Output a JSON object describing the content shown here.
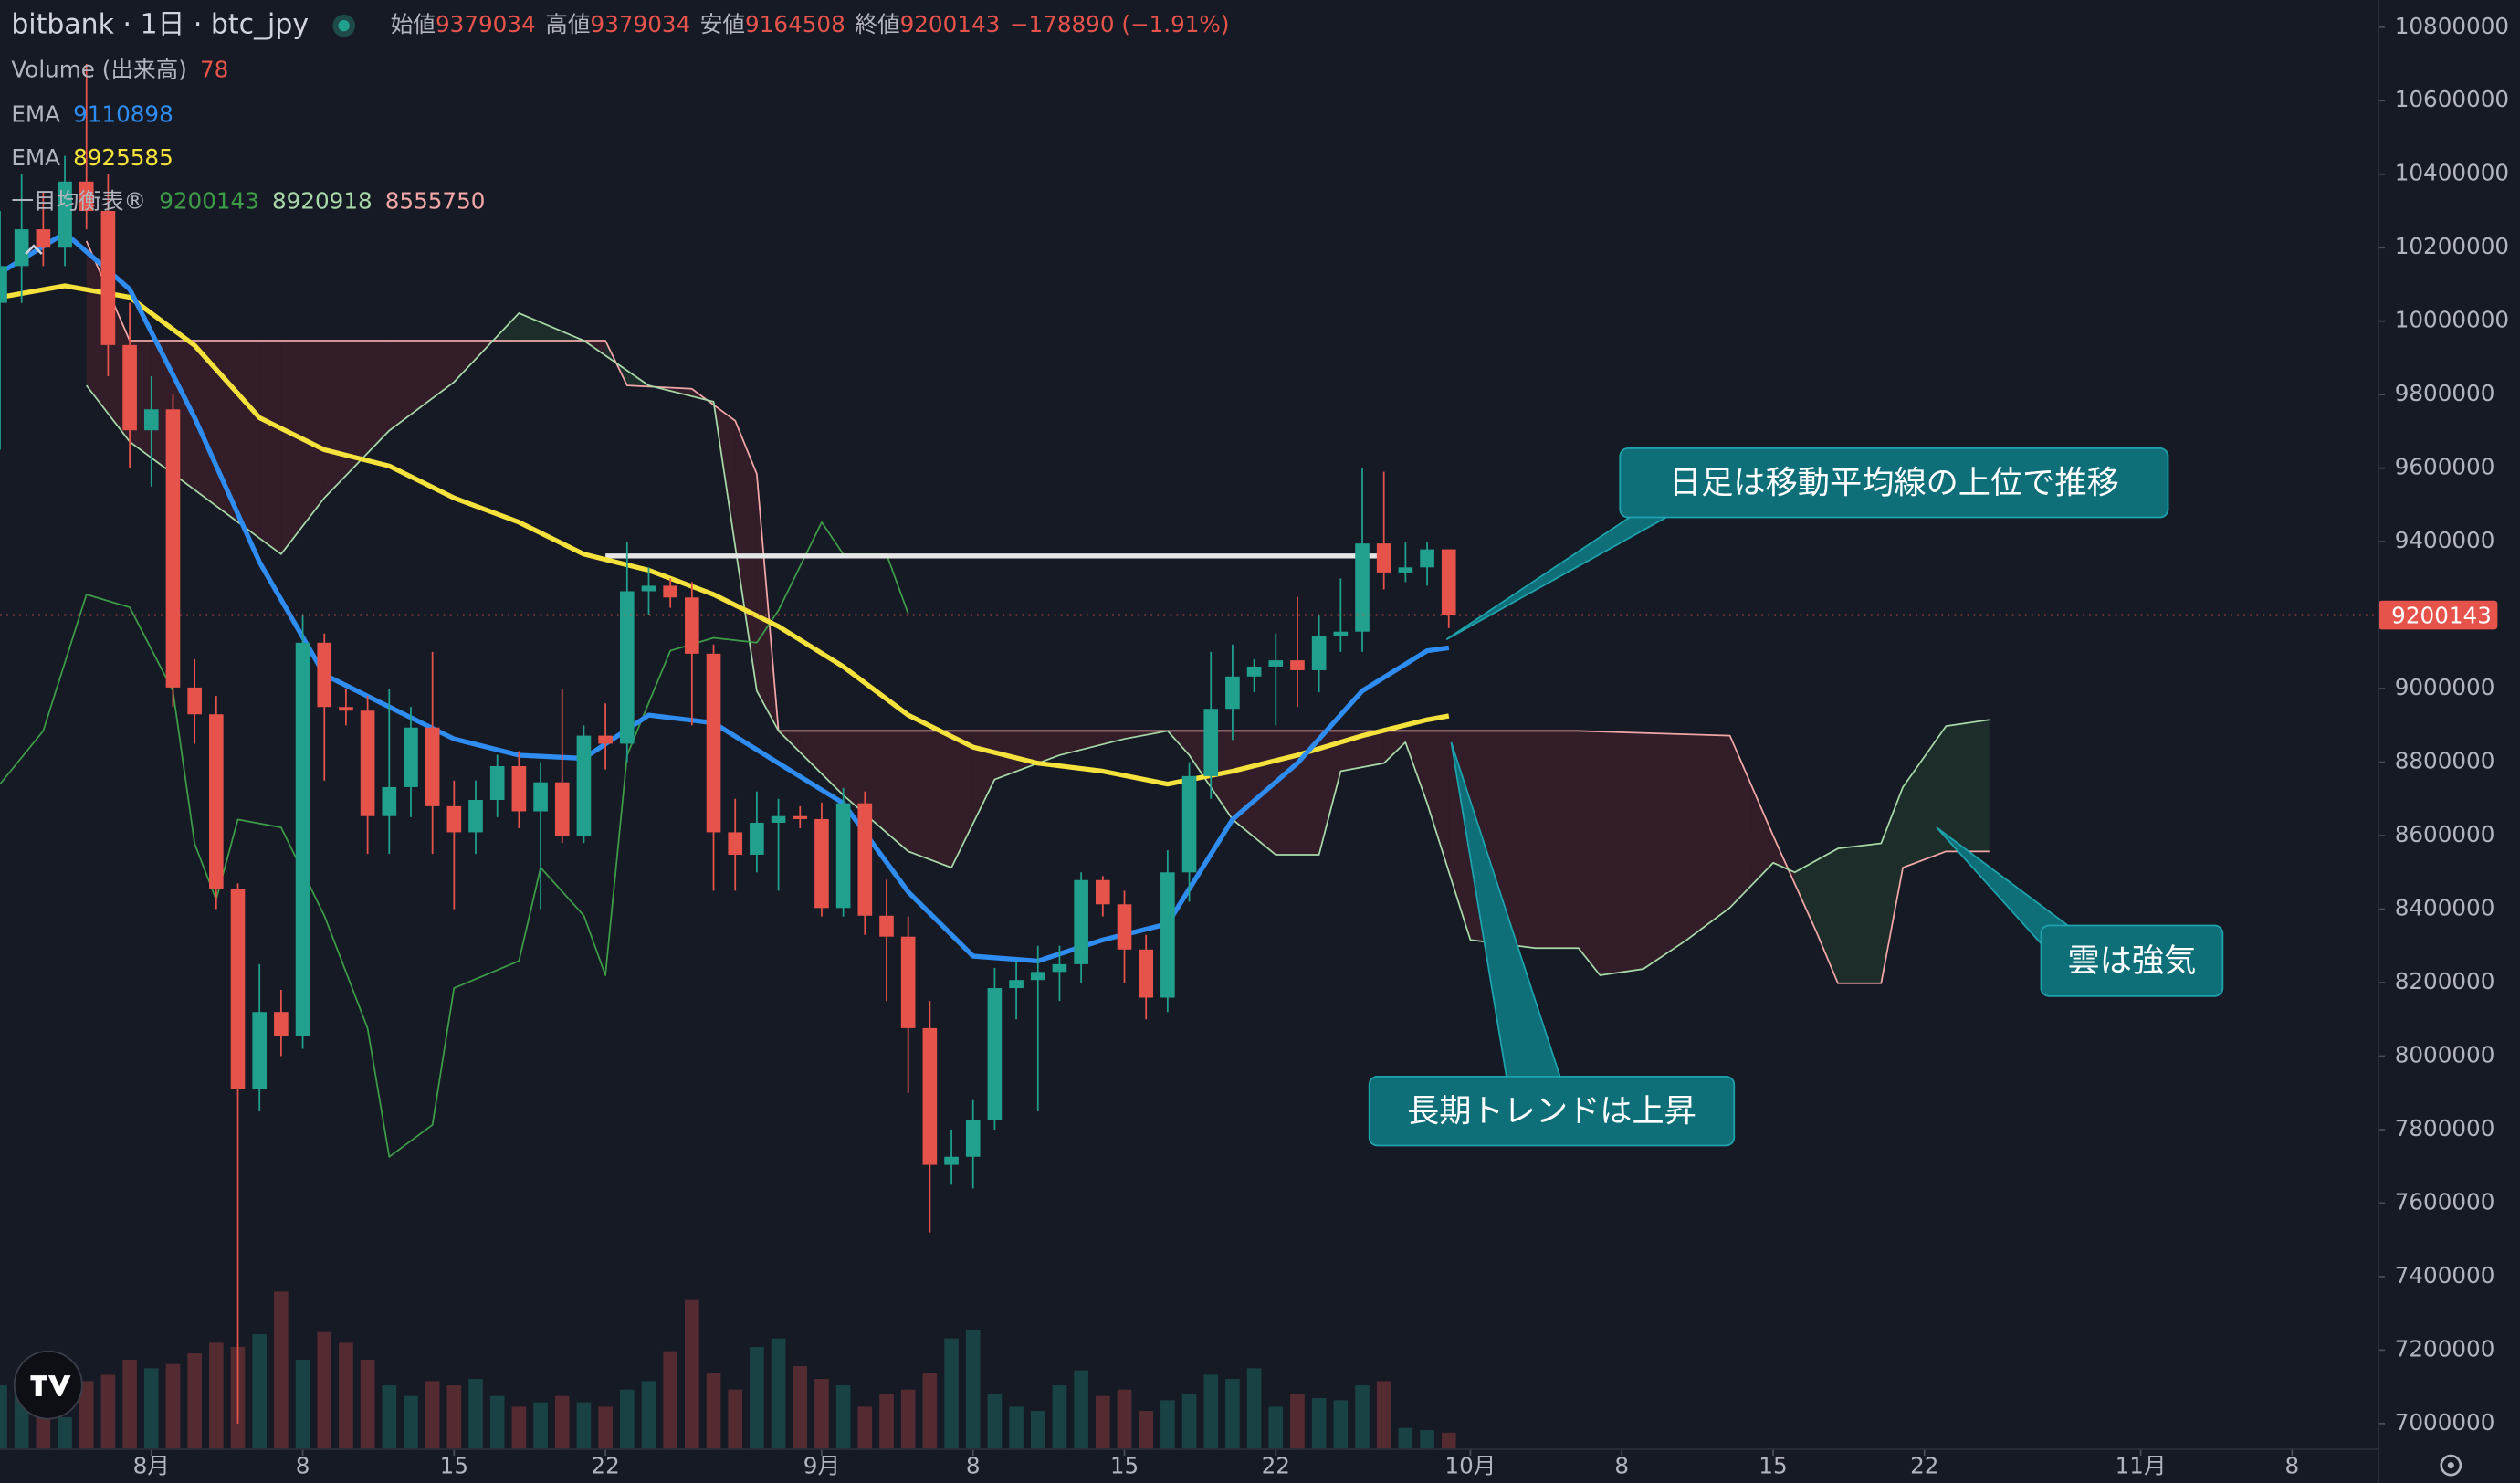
{
  "chart_data": {
    "type": "candlestick",
    "title": "bitbank · 1日 · btc_jpy",
    "ohlc_labels": [
      "始値",
      "高値",
      "安値",
      "終値"
    ],
    "change_label": "−178890 (−1.91%)",
    "up_color": "#22a08e",
    "down_color": "#e5534b",
    "xlim": [
      "07-25",
      "11-12"
    ],
    "xticks": [
      {
        "value": "08-01",
        "label": "8月"
      },
      {
        "value": "08-08",
        "label": "8"
      },
      {
        "value": "08-15",
        "label": "15"
      },
      {
        "value": "08-22",
        "label": "22"
      },
      {
        "value": "09-01",
        "label": "9月"
      },
      {
        "value": "09-08",
        "label": "8"
      },
      {
        "value": "09-15",
        "label": "15"
      },
      {
        "value": "09-22",
        "label": "22"
      },
      {
        "value": "10-01",
        "label": "10月"
      },
      {
        "value": "10-08",
        "label": "8"
      },
      {
        "value": "10-15",
        "label": "15"
      },
      {
        "value": "10-22",
        "label": "22"
      },
      {
        "value": "11-01",
        "label": "11月"
      },
      {
        "value": "11-08",
        "label": "8"
      }
    ],
    "ylim": [
      6930000,
      10874000
    ],
    "yticks": [
      7000000,
      7200000,
      7400000,
      7600000,
      7800000,
      8000000,
      8200000,
      8400000,
      8600000,
      8800000,
      9000000,
      9200000,
      9400000,
      9600000,
      9800000,
      10000000,
      10200000,
      10400000,
      10600000,
      10800000
    ],
    "x": [
      "07-25",
      "07-26",
      "07-27",
      "07-28",
      "07-29",
      "07-30",
      "07-31",
      "08-01",
      "08-02",
      "08-03",
      "08-04",
      "08-05",
      "08-06",
      "08-07",
      "08-08",
      "08-09",
      "08-10",
      "08-11",
      "08-12",
      "08-13",
      "08-14",
      "08-15",
      "08-16",
      "08-17",
      "08-18",
      "08-19",
      "08-20",
      "08-21",
      "08-22",
      "08-23",
      "08-24",
      "08-25",
      "08-26",
      "08-27",
      "08-28",
      "08-29",
      "08-30",
      "08-31",
      "09-01",
      "09-02",
      "09-03",
      "09-04",
      "09-05",
      "09-06",
      "09-07",
      "09-08",
      "09-09",
      "09-10",
      "09-11",
      "09-12",
      "09-13",
      "09-14",
      "09-15",
      "09-16",
      "09-17",
      "09-18",
      "09-19",
      "09-20",
      "09-21",
      "09-22",
      "09-23",
      "09-24",
      "09-25",
      "09-26",
      "09-27",
      "09-28",
      "09-29",
      "09-30"
    ],
    "open": [
      10050000,
      10150000,
      10250000,
      10200000,
      10380000,
      10300000,
      9935000,
      9703000,
      9760000,
      9003000,
      8930000,
      8456000,
      7910000,
      8120000,
      8054000,
      9125000,
      8950000,
      8940000,
      8653000,
      8732000,
      8894000,
      8680000,
      8609000,
      8697000,
      8789000,
      8666000,
      8745000,
      8600000,
      8872000,
      8850000,
      9265000,
      9280000,
      9248000,
      9095000,
      8609000,
      8548000,
      8635000,
      8653000,
      8645000,
      8403000,
      8688000,
      8382000,
      8325000,
      8076000,
      7704000,
      7726000,
      7826000,
      8185000,
      8207000,
      8229000,
      8250000,
      8479000,
      8413000,
      8290000,
      8159000,
      8500000,
      8762000,
      8945000,
      9033000,
      9060000,
      9077000,
      9050000,
      9142000,
      9155000,
      9395000,
      9316000,
      9330000,
      9379034
    ],
    "high": [
      10300000,
      10400000,
      10350000,
      10450000,
      10700000,
      10400000,
      10050000,
      9850000,
      9800000,
      9080000,
      8980000,
      8470000,
      8250000,
      8180000,
      9200000,
      9150000,
      9000000,
      8980000,
      9000000,
      8950000,
      9100000,
      8750000,
      8750000,
      8820000,
      8830000,
      8800000,
      9000000,
      8900000,
      8960000,
      9400000,
      9330000,
      9300000,
      9290000,
      9120000,
      8700000,
      8720000,
      8700000,
      8680000,
      8690000,
      8730000,
      8720000,
      8480000,
      8380000,
      8150000,
      7800000,
      7880000,
      8240000,
      8260000,
      8300000,
      8300000,
      8500000,
      8490000,
      8450000,
      8330000,
      8560000,
      8800000,
      9100000,
      9120000,
      9080000,
      9150000,
      9250000,
      9200000,
      9300000,
      9600000,
      9590000,
      9400000,
      9400000,
      9379034
    ],
    "low": [
      9650000,
      10050000,
      10150000,
      10150000,
      10250000,
      9850000,
      9600000,
      9550000,
      8950000,
      8850000,
      8400000,
      7000000,
      7850000,
      8000000,
      8020000,
      8750000,
      8900000,
      8550000,
      8550000,
      8650000,
      8550000,
      8400000,
      8550000,
      8650000,
      8620000,
      8400000,
      8580000,
      8580000,
      8780000,
      8800000,
      9200000,
      9220000,
      8900000,
      8450000,
      8450000,
      8500000,
      8450000,
      8620000,
      8380000,
      8380000,
      8330000,
      8150000,
      7900000,
      7520000,
      7650000,
      7640000,
      7800000,
      8100000,
      7850000,
      8150000,
      8200000,
      8380000,
      8200000,
      8100000,
      8120000,
      8420000,
      8700000,
      8860000,
      8990000,
      8900000,
      8950000,
      8990000,
      9100000,
      9100000,
      9270000,
      9290000,
      9280000,
      9164508
    ],
    "close": [
      10150000,
      10250000,
      10200000,
      10380000,
      10300000,
      9935000,
      9703000,
      9760000,
      9003000,
      8930000,
      8456000,
      7910000,
      8120000,
      8054000,
      9125000,
      8950000,
      8940000,
      8653000,
      8732000,
      8894000,
      8680000,
      8609000,
      8697000,
      8789000,
      8666000,
      8745000,
      8600000,
      8872000,
      8850000,
      9265000,
      9280000,
      9248000,
      9095000,
      8609000,
      8548000,
      8635000,
      8653000,
      8645000,
      8403000,
      8688000,
      8382000,
      8325000,
      8076000,
      7704000,
      7726000,
      7826000,
      8185000,
      8207000,
      8229000,
      8250000,
      8479000,
      8413000,
      8290000,
      8159000,
      8500000,
      8762000,
      8945000,
      9033000,
      9060000,
      9077000,
      9050000,
      9142000,
      9155000,
      9395000,
      9316000,
      9330000,
      9379000,
      9200143
    ],
    "price_line_color": "#e5534b",
    "volume": {
      "name": "Volume (出来高)",
      "lim": [
        0,
        6800
      ],
      "values": [
        300,
        280,
        200,
        150,
        320,
        350,
        420,
        380,
        400,
        450,
        500,
        480,
        540,
        740,
        420,
        550,
        500,
        420,
        300,
        250,
        320,
        300,
        330,
        250,
        200,
        220,
        250,
        220,
        200,
        280,
        320,
        460,
        700,
        360,
        280,
        480,
        520,
        390,
        330,
        300,
        200,
        260,
        280,
        360,
        520,
        560,
        260,
        200,
        180,
        300,
        370,
        250,
        280,
        180,
        230,
        260,
        350,
        330,
        380,
        200,
        260,
        240,
        230,
        300,
        320,
        100,
        90,
        78
      ]
    },
    "ema": [
      {
        "name": "EMA",
        "color": "#2f8cf0",
        "x": [
          "07-25",
          "07-28",
          "07-31",
          "08-03",
          "08-06",
          "08-09",
          "08-12",
          "08-15",
          "08-18",
          "08-21",
          "08-24",
          "08-27",
          "08-30",
          "09-02",
          "09-05",
          "09-08",
          "09-11",
          "09-14",
          "09-17",
          "09-20",
          "09-23",
          "09-26",
          "09-29",
          "09-30"
        ],
        "values": [
          10131000,
          10240000,
          10087000,
          9737000,
          9344000,
          9038000,
          8950000,
          8863000,
          8819000,
          8810000,
          8928000,
          8907000,
          8797000,
          8688000,
          8447000,
          8272000,
          8259000,
          8316000,
          8360000,
          8644000,
          8797000,
          8994000,
          9103000,
          9110898
        ]
      },
      {
        "name": "EMA",
        "color": "#f5e23c",
        "x": [
          "07-25",
          "07-28",
          "07-31",
          "08-03",
          "08-06",
          "08-09",
          "08-12",
          "08-15",
          "08-18",
          "08-21",
          "08-24",
          "08-27",
          "08-30",
          "09-02",
          "09-05",
          "09-08",
          "09-11",
          "09-14",
          "09-17",
          "09-20",
          "09-23",
          "09-26",
          "09-29",
          "09-30"
        ],
        "values": [
          10065000,
          10096000,
          10065000,
          9934000,
          9737000,
          9650000,
          9606000,
          9519000,
          9453000,
          9366000,
          9322000,
          9256000,
          9169000,
          9060000,
          8928000,
          8841000,
          8797000,
          8775000,
          8740000,
          8775000,
          8819000,
          8872000,
          8915000,
          8925585
        ]
      }
    ],
    "ichimoku": {
      "name": "一目均衡表®",
      "legend_values": [
        9200143,
        8920918,
        8555750
      ],
      "cloud_up_color": "rgba(76,175,80,0.13)",
      "cloud_down_color": "rgba(242,54,69,0.13)",
      "lagging": {
        "color": "#3e9b48",
        "x": [
          "07-25",
          "07-27",
          "07-29",
          "07-31",
          "08-02",
          "08-03",
          "08-04",
          "08-05",
          "08-07",
          "08-09",
          "08-11",
          "08-12",
          "08-14",
          "08-15",
          "08-18",
          "08-19",
          "08-21",
          "08-22",
          "08-23",
          "08-25",
          "08-27",
          "08-29",
          "08-30",
          "09-01",
          "09-02",
          "09-04",
          "09-05"
        ],
        "values": [
          8740000,
          8885000,
          9256000,
          9221000,
          8994000,
          8578000,
          8426000,
          8644000,
          8622000,
          8382000,
          8076000,
          7726000,
          7813000,
          8185000,
          8259000,
          8513000,
          8382000,
          8220000,
          8819000,
          9103000,
          9138000,
          9125000,
          9213000,
          9453000,
          9366000,
          9366000,
          9204000
        ]
      },
      "span_a": {
        "color": "#a8d8a8",
        "x": [
          "07-29",
          "07-31",
          "08-03",
          "08-06",
          "08-07",
          "08-09",
          "08-12",
          "08-15",
          "08-18",
          "08-21",
          "08-24",
          "08-27",
          "08-29",
          "08-30",
          "09-02",
          "09-05",
          "09-07",
          "09-09",
          "09-12",
          "09-15",
          "09-17",
          "09-18",
          "09-20",
          "09-22",
          "09-24",
          "09-25",
          "09-27",
          "09-28",
          "09-29",
          "10-01",
          "10-04",
          "10-06",
          "10-07",
          "10-09",
          "10-11",
          "10-13",
          "10-15",
          "10-16",
          "10-18",
          "10-20",
          "10-21",
          "10-23",
          "10-25"
        ],
        "values": [
          9825000,
          9672000,
          9541000,
          9409000,
          9366000,
          9519000,
          9702000,
          9834000,
          10022000,
          9947000,
          9825000,
          9781000,
          8994000,
          8885000,
          8710000,
          8557000,
          8513000,
          8753000,
          8819000,
          8863000,
          8885000,
          8819000,
          8644000,
          8548000,
          8548000,
          8775000,
          8797000,
          8854000,
          8688000,
          8316000,
          8294000,
          8294000,
          8220000,
          8237000,
          8316000,
          8404000,
          8526000,
          8500000,
          8565000,
          8579000,
          8732000,
          8898000,
          8915000
        ]
      },
      "span_b": {
        "color": "#f2a7a7",
        "x": [
          "07-29",
          "07-31",
          "08-21",
          "08-22",
          "08-23",
          "08-26",
          "08-28",
          "08-29",
          "08-30",
          "09-17",
          "10-06",
          "10-13",
          "10-15",
          "10-17",
          "10-18",
          "10-20",
          "10-21",
          "10-23",
          "10-25"
        ],
        "values": [
          10218000,
          9947000,
          9947000,
          9947000,
          9825000,
          9816000,
          9729000,
          9584000,
          8885000,
          8885000,
          8885000,
          8872000,
          8600000,
          8338000,
          8198000,
          8198000,
          8513000,
          8557000,
          8557000
        ]
      }
    },
    "level": {
      "color": "#e6e6e6",
      "x": [
        "08-22",
        "09-27"
      ],
      "values": [
        9361000,
        9361000
      ]
    },
    "annotations": [
      "日足は移動平均線の上位で推移",
      "長期トレンドは上昇",
      "雲は強気"
    ]
  }
}
